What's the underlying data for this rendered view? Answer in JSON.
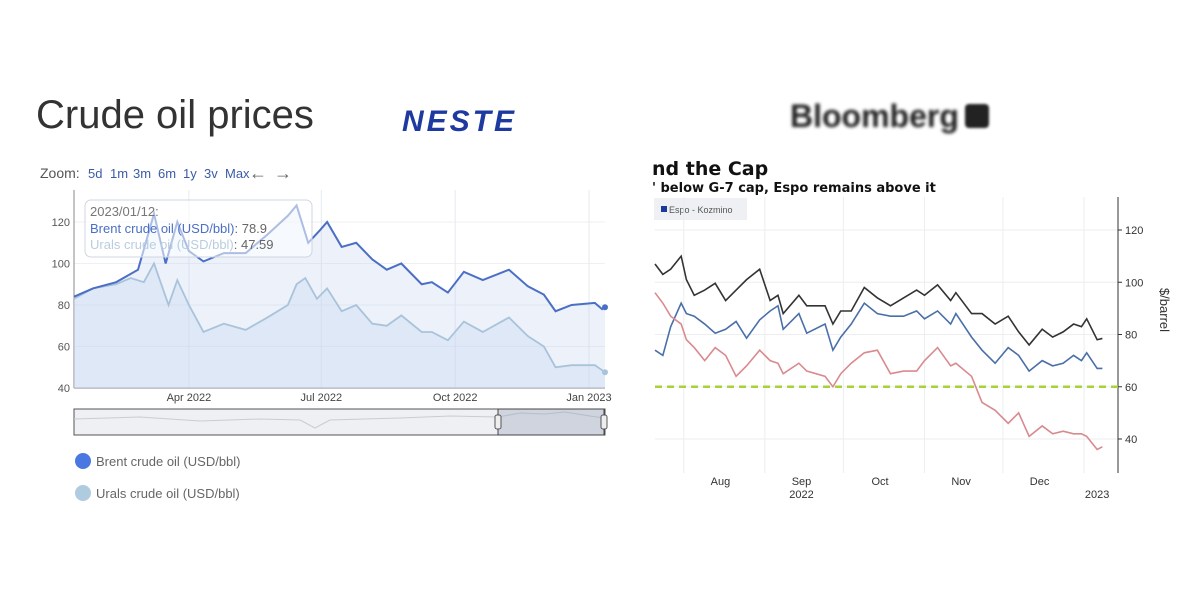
{
  "left_panel": {
    "title": "Crude oil prices",
    "logo_text": "NESTE",
    "zoom_label": "Zoom:",
    "zoom_options": [
      "5d",
      "1m",
      "3m",
      "6m",
      "1y",
      "3v",
      "Max"
    ],
    "nav_icons": [
      "arrow-left-icon",
      "arrow-right-icon"
    ],
    "tooltip": {
      "date": "2023/01/12:",
      "brent_label": "Brent crude oil (USD/bbl)",
      "brent_value": ": 78.9",
      "urals_label": "Urals crude oil (USD/bbl)",
      "urals_value": ": 47.59"
    },
    "legend": [
      "Brent crude oil (USD/bbl)",
      "Urals crude oil (USD/bbl)"
    ]
  },
  "right_panel": {
    "logo_text": "Bloomberg",
    "title": "nd the Cap",
    "subtitle": "' below G-7 cap, Espo remains above it",
    "legend": "Espo - Kozmino"
  },
  "chart_data": [
    {
      "type": "area",
      "xlabel": "",
      "ylabel": "",
      "ylim": [
        40,
        130
      ],
      "yticks": [
        40,
        60,
        80,
        100,
        120
      ],
      "xticks": [
        {
          "date": "2022-04-01",
          "label": "Apr 2022"
        },
        {
          "date": "2022-07-01",
          "label": "Jul 2022"
        },
        {
          "date": "2022-10-01",
          "label": "Oct 2022"
        },
        {
          "date": "2023-01-01",
          "label": "Jan 2023"
        }
      ],
      "xlim": [
        "2022-01-12",
        "2023-01-12"
      ],
      "grid": true,
      "legend_placement": "bottom",
      "series": [
        {
          "name": "Brent crude oil (USD/bbl)",
          "color": "#4a6fc4",
          "x": [
            "2022-01-12",
            "2022-01-25",
            "2022-02-10",
            "2022-02-25",
            "2022-03-08",
            "2022-03-16",
            "2022-03-24",
            "2022-04-01",
            "2022-04-11",
            "2022-04-25",
            "2022-05-10",
            "2022-05-25",
            "2022-06-08",
            "2022-06-14",
            "2022-06-22",
            "2022-06-30",
            "2022-07-05",
            "2022-07-15",
            "2022-07-25",
            "2022-08-05",
            "2022-08-15",
            "2022-08-25",
            "2022-09-08",
            "2022-09-15",
            "2022-09-26",
            "2022-10-07",
            "2022-10-20",
            "2022-11-07",
            "2022-11-20",
            "2022-12-01",
            "2022-12-09",
            "2022-12-20",
            "2023-01-05",
            "2023-01-10",
            "2023-01-12"
          ],
          "values": [
            84,
            88,
            91,
            97,
            124,
            100,
            120,
            106,
            101,
            105,
            105,
            114,
            123,
            128,
            110,
            116,
            120,
            108,
            110,
            102,
            97,
            100,
            90,
            91,
            86,
            96,
            92,
            97,
            89,
            85,
            77,
            80,
            81,
            78,
            78.9
          ]
        },
        {
          "name": "Urals crude oil (USD/bbl)",
          "color": "#a9c3da",
          "x": [
            "2022-01-12",
            "2022-01-25",
            "2022-02-10",
            "2022-02-20",
            "2022-03-01",
            "2022-03-08",
            "2022-03-18",
            "2022-03-24",
            "2022-04-01",
            "2022-04-11",
            "2022-04-25",
            "2022-05-10",
            "2022-05-25",
            "2022-06-08",
            "2022-06-14",
            "2022-06-20",
            "2022-06-28",
            "2022-07-05",
            "2022-07-15",
            "2022-07-25",
            "2022-08-05",
            "2022-08-15",
            "2022-08-25",
            "2022-09-08",
            "2022-09-15",
            "2022-09-26",
            "2022-10-07",
            "2022-10-20",
            "2022-11-07",
            "2022-11-20",
            "2022-12-01",
            "2022-12-09",
            "2022-12-20",
            "2023-01-05",
            "2023-01-12"
          ],
          "values": [
            83,
            88,
            90,
            93,
            91,
            100,
            80,
            92,
            80,
            67,
            71,
            68,
            74,
            80,
            90,
            93,
            83,
            88,
            77,
            80,
            71,
            70,
            75,
            67,
            67,
            63,
            72,
            67,
            74,
            65,
            60,
            50,
            51,
            51,
            47.59
          ]
        }
      ]
    },
    {
      "type": "line",
      "title": "nd the Cap",
      "subtitle": "' below G-7 cap, Espo remains above it",
      "ylabel": "$/barrel",
      "ylim": [
        28,
        130
      ],
      "yticks": [
        40,
        60,
        80,
        100,
        120
      ],
      "xticks": [
        {
          "date": "2022-08-15",
          "label": "Aug"
        },
        {
          "date": "2022-09-15",
          "label": "Sep",
          "sub": "2022"
        },
        {
          "date": "2022-10-15",
          "label": "Oct"
        },
        {
          "date": "2022-11-15",
          "label": "Nov"
        },
        {
          "date": "2022-12-15",
          "label": "Dec"
        },
        {
          "date": "2023-01-06",
          "label": "",
          "sub": "2023"
        }
      ],
      "xlim": [
        "2022-07-21",
        "2023-01-09"
      ],
      "axis_side": "right",
      "grid": true,
      "legend_placement": "top-left",
      "reference_line": {
        "value": 60,
        "color": "#a8d23a",
        "style": "dashed"
      },
      "x": [
        "2022-07-21",
        "2022-07-24",
        "2022-07-27",
        "2022-07-31",
        "2022-08-02",
        "2022-08-05",
        "2022-08-09",
        "2022-08-13",
        "2022-08-17",
        "2022-08-21",
        "2022-08-25",
        "2022-08-30",
        "2022-09-03",
        "2022-09-06",
        "2022-09-08",
        "2022-09-14",
        "2022-09-17",
        "2022-09-24",
        "2022-09-27",
        "2022-09-30",
        "2022-10-04",
        "2022-10-09",
        "2022-10-14",
        "2022-10-19",
        "2022-10-24",
        "2022-10-29",
        "2022-11-01",
        "2022-11-06",
        "2022-11-11",
        "2022-11-13",
        "2022-11-19",
        "2022-11-23",
        "2022-11-28",
        "2022-12-03",
        "2022-12-07",
        "2022-12-11",
        "2022-12-16",
        "2022-12-20",
        "2022-12-24",
        "2022-12-28",
        "2022-12-31",
        "2023-01-02",
        "2023-01-06",
        "2023-01-08"
      ],
      "series": [
        {
          "color": "#333333",
          "values": [
            107,
            103,
            105,
            110,
            101,
            95,
            97,
            99.6,
            93,
            97,
            101,
            105,
            93,
            95,
            88,
            95,
            91,
            91,
            84,
            89,
            89,
            98,
            94,
            91,
            94,
            97,
            95,
            99,
            93,
            96,
            88,
            88,
            84,
            87,
            81,
            76,
            82,
            79,
            81,
            84,
            83,
            86,
            78,
            78.5
          ]
        },
        {
          "name": "Espo - Kozmino",
          "color": "#4a6fa8",
          "values": [
            74,
            72,
            83,
            92,
            88,
            87,
            84,
            80.5,
            82,
            85,
            78.6,
            85.6,
            89,
            91,
            82,
            88,
            80.5,
            84,
            74,
            79,
            84,
            92,
            88,
            87,
            87,
            89,
            86,
            89,
            84,
            88,
            79,
            74,
            69,
            75,
            72,
            66,
            70,
            68,
            69,
            72,
            70,
            73,
            67,
            67
          ]
        },
        {
          "color": "#d98a8f",
          "values": [
            96,
            92,
            87,
            84,
            78,
            75,
            70,
            75,
            72,
            64,
            68,
            74,
            70,
            69,
            65,
            69,
            66,
            64,
            60,
            65,
            69,
            73,
            74,
            65,
            66,
            66,
            70,
            75,
            68,
            69,
            64,
            54,
            51,
            46,
            50,
            41,
            45,
            42,
            43,
            42,
            42,
            41,
            36,
            37
          ]
        }
      ]
    }
  ]
}
